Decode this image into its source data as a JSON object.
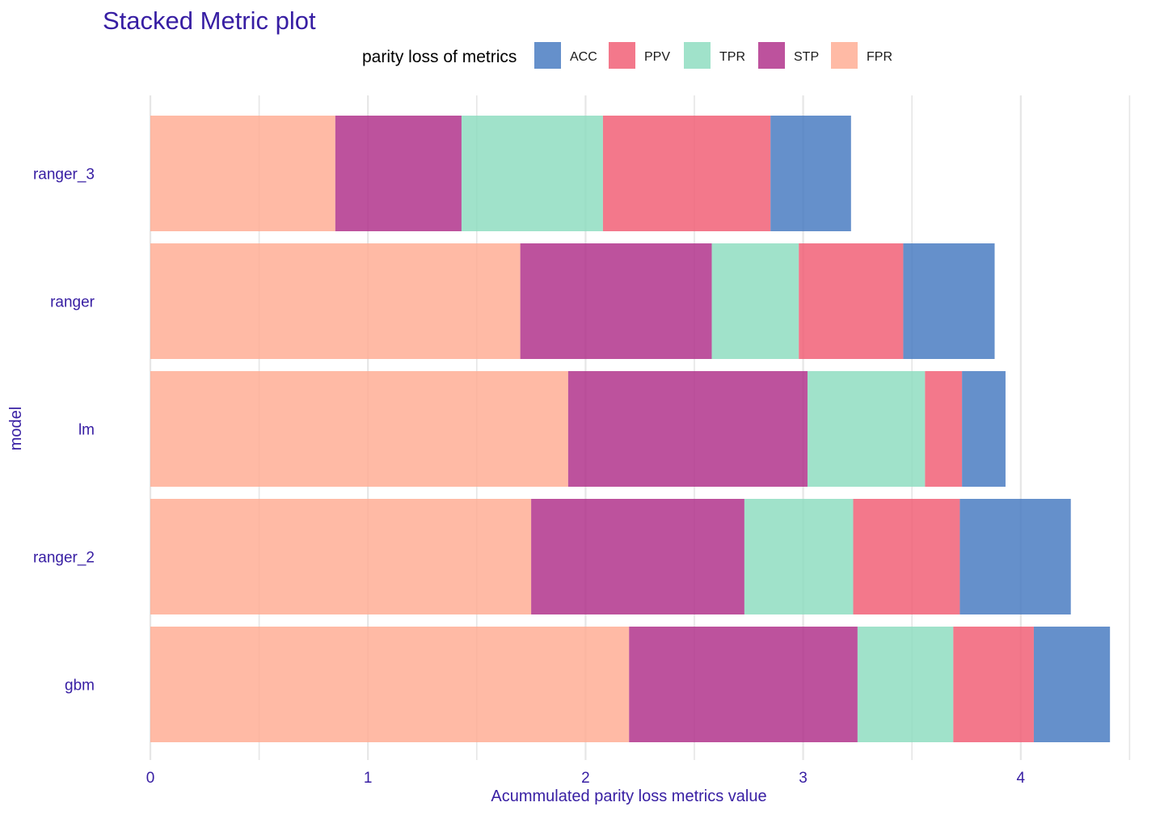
{
  "chart_data": {
    "type": "bar",
    "orientation": "horizontal",
    "stacked": true,
    "title": "Stacked Metric plot",
    "xlabel": "Acummulated parity loss metrics value",
    "ylabel": "model",
    "xlim": [
      0,
      4.5
    ],
    "xticks": [
      "0",
      "1",
      "2",
      "3",
      "4"
    ],
    "grid": true,
    "legend": {
      "title": "parity loss of metrics",
      "position": "top",
      "entries": [
        "ACC",
        "PPV",
        "TPR",
        "STP",
        "FPR"
      ]
    },
    "categories": [
      "ranger_3",
      "ranger",
      "lm",
      "ranger_2",
      "gbm"
    ],
    "series": [
      {
        "name": "FPR",
        "color": "#FFAB91",
        "values": [
          0.85,
          1.7,
          1.92,
          1.75,
          2.2
        ]
      },
      {
        "name": "STP",
        "color": "#AE2C87",
        "values": [
          0.58,
          0.88,
          1.1,
          0.98,
          1.05
        ]
      },
      {
        "name": "TPR",
        "color": "#8BDCBE",
        "values": [
          0.65,
          0.4,
          0.54,
          0.5,
          0.44
        ]
      },
      {
        "name": "PPV",
        "color": "#F05A71",
        "values": [
          0.77,
          0.48,
          0.17,
          0.49,
          0.37
        ]
      },
      {
        "name": "ACC",
        "color": "#4378BF",
        "values": [
          0.37,
          0.42,
          0.2,
          0.51,
          0.35
        ]
      }
    ],
    "colors": {
      "text_accent": "#371EA3",
      "grid": "#E6E6E6"
    }
  }
}
